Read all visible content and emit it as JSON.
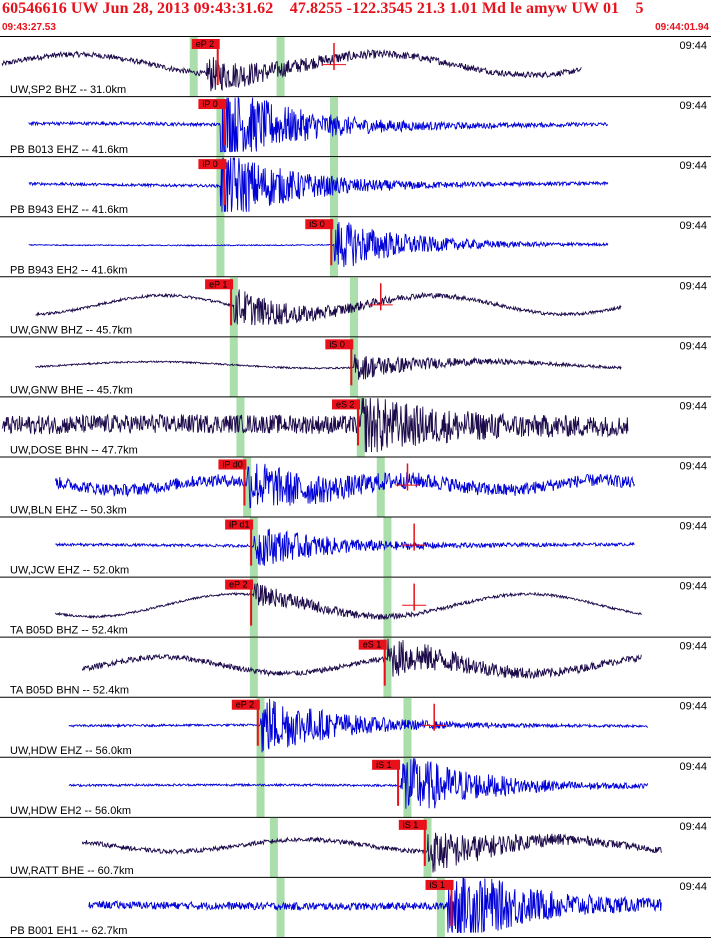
{
  "header": {
    "title": "60546616 UW Jun 28, 2013 09:43:31.62    47.8255 -122.3545 21.3 1.01 Md le amyw UW 01    5",
    "start_time": "09:43:27.53",
    "end_time": "09:44:01.94"
  },
  "colors": {
    "header_text": "#e8101a",
    "trace_blue": "#0000d8",
    "trace_dark": "#1c0a4a",
    "pick_marker": "#e8101a",
    "window_band": "#9bd89b",
    "background": "#ffffff"
  },
  "traces": [
    {
      "label": "UW,SP2 BHZ -- 31.0km",
      "time": "09:44",
      "color": "dark",
      "start": 0.0,
      "end": 0.87,
      "amp": 0.38,
      "wave": 2.2,
      "noise": 0.1,
      "arrival": 0.31,
      "burst": 0.6,
      "pick": {
        "text": "eP 2",
        "pos": 0.29
      },
      "band": 0.29,
      "band2": 0.42,
      "amp_marker": 0.5
    },
    {
      "label": "PB B013 EHZ -- 41.6km",
      "time": "09:44",
      "color": "blue",
      "start": 0.04,
      "end": 0.91,
      "amp": 0.05,
      "wave": 0,
      "noise": 0.06,
      "arrival": 0.33,
      "burst": 1.6,
      "pick": {
        "text": "iP 0",
        "pos": 0.3
      },
      "band": 0.33,
      "band2": 0.5
    },
    {
      "label": "PB B943 EHZ -- 41.6km",
      "time": "09:44",
      "color": "blue",
      "start": 0.04,
      "end": 0.91,
      "amp": 0.05,
      "wave": 0,
      "noise": 0.05,
      "arrival": 0.33,
      "burst": 1.4,
      "pick": {
        "text": "iP 0",
        "pos": 0.3
      },
      "band": 0.33,
      "band2": 0.5
    },
    {
      "label": "PB B943 EH2 -- 41.6km",
      "time": "09:44",
      "color": "blue",
      "start": 0.04,
      "end": 0.91,
      "amp": 0.02,
      "wave": 0,
      "noise": 0.02,
      "arrival": 0.5,
      "burst": 1.0,
      "pick": {
        "text": "iS 0",
        "pos": 0.46
      },
      "band": 0.33,
      "band2": 0.5
    },
    {
      "label": "UW,GNW BHZ -- 45.7km",
      "time": "09:44",
      "color": "dark",
      "start": 0.05,
      "end": 0.93,
      "amp": 0.35,
      "wave": 2.5,
      "noise": 0.05,
      "arrival": 0.35,
      "burst": 0.7,
      "pick": {
        "text": "eP 1",
        "pos": 0.31
      },
      "band": 0.35,
      "band2": 0.53,
      "amp_marker": 0.57
    },
    {
      "label": "UW,GNW BHE -- 45.7km",
      "time": "09:44",
      "color": "dark",
      "start": 0.05,
      "end": 0.93,
      "amp": 0.12,
      "wave": 2.0,
      "noise": 0.03,
      "arrival": 0.53,
      "burst": 0.5,
      "pick": {
        "text": "iS 0",
        "pos": 0.49
      },
      "band": 0.35,
      "band2": 0.53
    },
    {
      "label": "UW,DOSE BHN -- 47.7km",
      "time": "09:44",
      "color": "dark",
      "start": 0.0,
      "end": 0.94,
      "amp": 0.05,
      "wave": 0,
      "noise": 0.35,
      "arrival": 0.54,
      "burst": 0.9,
      "pick": {
        "text": "eS 2",
        "pos": 0.5
      },
      "band": 0.36,
      "band2": 0.54
    },
    {
      "label": "UW,BLN EHZ -- 50.3km",
      "time": "09:44",
      "color": "blue",
      "start": 0.08,
      "end": 0.95,
      "amp": 0.18,
      "wave": 3.5,
      "noise": 0.22,
      "arrival": 0.37,
      "burst": 0.8,
      "pick": {
        "text": "iP d0",
        "pos": 0.33
      },
      "band": 0.37,
      "band2": 0.57,
      "amp_marker": 0.61
    },
    {
      "label": "UW,JCW EHZ -- 52.0km",
      "time": "09:44",
      "color": "blue",
      "start": 0.08,
      "end": 0.95,
      "amp": 0.03,
      "wave": 0,
      "noise": 0.05,
      "arrival": 0.38,
      "burst": 0.8,
      "pick": {
        "text": "iP d1",
        "pos": 0.34
      },
      "band": 0.38,
      "band2": 0.58,
      "amp_marker": 0.62
    },
    {
      "label": "TA B05D BHZ -- 52.4km",
      "time": "09:44",
      "color": "dark",
      "start": 0.08,
      "end": 0.96,
      "amp": 0.42,
      "wave": 2.3,
      "noise": 0.04,
      "arrival": 0.38,
      "burst": 0.4,
      "pick": {
        "text": "eP 2",
        "pos": 0.34
      },
      "band": 0.38,
      "band2": 0.58,
      "amp_marker": 0.62
    },
    {
      "label": "TA B05D BHN -- 52.4km",
      "time": "09:44",
      "color": "dark",
      "start": 0.12,
      "end": 0.96,
      "amp": 0.3,
      "wave": 2.7,
      "noise": 0.1,
      "arrival": 0.58,
      "burst": 0.7,
      "pick": {
        "text": "eS 1",
        "pos": 0.54
      },
      "band": 0.38,
      "band2": 0.58
    },
    {
      "label": "UW,HDW EHZ -- 56.0km",
      "time": "09:44",
      "color": "blue",
      "start": 0.1,
      "end": 0.97,
      "amp": 0.02,
      "wave": 0,
      "noise": 0.04,
      "arrival": 0.39,
      "burst": 1.2,
      "pick": {
        "text": "eP 2",
        "pos": 0.35
      },
      "band": 0.39,
      "band2": 0.61,
      "amp_marker": 0.65
    },
    {
      "label": "UW,HDW EH2 -- 56.0km",
      "time": "09:44",
      "color": "blue",
      "start": 0.1,
      "end": 0.97,
      "amp": 0.02,
      "wave": 0,
      "noise": 0.04,
      "arrival": 0.6,
      "burst": 1.3,
      "pick": {
        "text": "iS 1",
        "pos": 0.56
      },
      "band": 0.39,
      "band2": 0.61
    },
    {
      "label": "UW,RATT BHE -- 60.7km",
      "time": "09:44",
      "color": "dark",
      "start": 0.12,
      "end": 0.99,
      "amp": 0.22,
      "wave": 2.6,
      "noise": 0.08,
      "arrival": 0.64,
      "burst": 0.8,
      "pick": {
        "text": "iS 1",
        "pos": 0.6
      },
      "band": 0.41,
      "band2": 0.64
    },
    {
      "label": "PB B001 EH1 -- 62.7km",
      "time": "09:44",
      "color": "blue",
      "start": 0.13,
      "end": 0.99,
      "amp": 0.03,
      "wave": 0,
      "noise": 0.14,
      "arrival": 0.67,
      "burst": 1.6,
      "pick": {
        "text": "iS 1",
        "pos": 0.64
      },
      "band": 0.42,
      "band2": 0.66
    }
  ]
}
